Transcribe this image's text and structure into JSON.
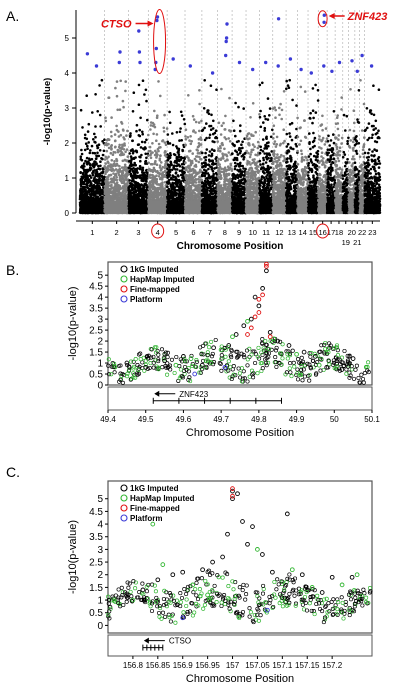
{
  "figure": {
    "panel_labels": [
      "A.",
      "B.",
      "C."
    ]
  },
  "colors": {
    "black": "#000000",
    "gray": "#7f7f7f",
    "blue": "#3b3bd6",
    "red": "#e01010",
    "green": "#2fb52f",
    "annotation": "#e01010",
    "vline": "#9a9a9a"
  },
  "chart_data": [
    {
      "type": "scatter",
      "title": "",
      "xlabel": "Chromosome Position",
      "ylabel": "-log10(p-value)",
      "ylim": [
        0,
        5.8
      ],
      "yticks": [
        "0",
        "1",
        "2",
        "3",
        "4",
        "5"
      ],
      "categories": [
        "1",
        "2",
        "3",
        "4",
        "5",
        "6",
        "7",
        "8",
        "9",
        "10",
        "11",
        "12",
        "13",
        "14",
        "15",
        "16",
        "17",
        "18",
        "19",
        "20",
        "21",
        "22",
        "23"
      ],
      "chromosome_lengths_mb": [
        249,
        243,
        198,
        191,
        181,
        171,
        159,
        146,
        141,
        136,
        135,
        134,
        115,
        107,
        103,
        90,
        81,
        78,
        59,
        63,
        48,
        51,
        155
      ],
      "highlighted_chromosomes": [
        "4",
        "16"
      ],
      "annotations": [
        {
          "label": "CTSO",
          "chromosome": "4",
          "y": 5.5
        },
        {
          "label": "ZNF423",
          "chromosome": "16",
          "y": 5.6
        }
      ],
      "top_hits": [
        {
          "chr": "1",
          "y": 4.55
        },
        {
          "chr": "1",
          "y": 4.2
        },
        {
          "chr": "2",
          "y": 4.6
        },
        {
          "chr": "2",
          "y": 4.3
        },
        {
          "chr": "3",
          "y": 4.3
        },
        {
          "chr": "3",
          "y": 4.6
        },
        {
          "chr": "3",
          "y": 5.2
        },
        {
          "chr": "4",
          "y": 5.6
        },
        {
          "chr": "4",
          "y": 5.5
        },
        {
          "chr": "4",
          "y": 4.7
        },
        {
          "chr": "4",
          "y": 4.3
        },
        {
          "chr": "4",
          "y": 4.1
        },
        {
          "chr": "5",
          "y": 4.4
        },
        {
          "chr": "6",
          "y": 4.2
        },
        {
          "chr": "7",
          "y": 4.0
        },
        {
          "chr": "8",
          "y": 5.4
        },
        {
          "chr": "8",
          "y": 5.0
        },
        {
          "chr": "8",
          "y": 4.9
        },
        {
          "chr": "8",
          "y": 4.5
        },
        {
          "chr": "9",
          "y": 4.3
        },
        {
          "chr": "10",
          "y": 4.1
        },
        {
          "chr": "11",
          "y": 4.3
        },
        {
          "chr": "12",
          "y": 5.55
        },
        {
          "chr": "12",
          "y": 4.2
        },
        {
          "chr": "13",
          "y": 4.4
        },
        {
          "chr": "14",
          "y": 4.1
        },
        {
          "chr": "15",
          "y": 4.0
        },
        {
          "chr": "16",
          "y": 5.65
        },
        {
          "chr": "16",
          "y": 5.45
        },
        {
          "chr": "16",
          "y": 4.2
        },
        {
          "chr": "17",
          "y": 4.05
        },
        {
          "chr": "18",
          "y": 4.3
        },
        {
          "chr": "20",
          "y": 4.35
        },
        {
          "chr": "21",
          "y": 4.05
        },
        {
          "chr": "22",
          "y": 4.5
        },
        {
          "chr": "23",
          "y": 4.2
        }
      ]
    },
    {
      "type": "scatter",
      "title": "",
      "xlabel": "Chromosome Position",
      "ylabel": "-log10(p-value)",
      "xlim": [
        49.4,
        50.1
      ],
      "ylim": [
        0,
        5.6
      ],
      "xticks": [
        "49.4",
        "49.5",
        "49.6",
        "49.7",
        "49.8",
        "49.9",
        "50",
        "50.1"
      ],
      "yticks": [
        "0",
        "0.5",
        "1",
        "1.5",
        "2",
        "2.5",
        "3",
        "3.5",
        "4",
        "4.5",
        "5"
      ],
      "legend": {
        "position": "top-left",
        "entries": [
          "1kG Imputed",
          "HapMap Imputed",
          "Fine-mapped",
          "Platform"
        ]
      },
      "gene": {
        "name": "ZNF423",
        "start": 49.52,
        "end": 49.86,
        "direction": "reverse"
      },
      "series": [
        {
          "name": "1kG Imputed",
          "points": [
            [
              49.82,
              5.2
            ],
            [
              49.81,
              4.4
            ],
            [
              49.79,
              4.0
            ],
            [
              49.8,
              3.6
            ],
            [
              49.78,
              3.0
            ],
            [
              49.76,
              2.7
            ],
            [
              49.83,
              2.4
            ],
            [
              49.74,
              2.3
            ],
            [
              49.85,
              2.0
            ],
            [
              49.72,
              1.8
            ],
            [
              49.88,
              1.8
            ],
            [
              49.68,
              1.7
            ],
            [
              49.92,
              1.5
            ],
            [
              49.95,
              1.3
            ],
            [
              50.05,
              1.2
            ],
            [
              49.6,
              1.3
            ],
            [
              49.55,
              1.1
            ],
            [
              49.45,
              1.0
            ],
            [
              49.5,
              0.8
            ],
            [
              49.65,
              0.9
            ],
            [
              49.98,
              0.8
            ],
            [
              50.02,
              0.7
            ]
          ]
        },
        {
          "name": "HapMap Imputed",
          "points": [
            [
              49.77,
              2.9
            ],
            [
              49.73,
              2.2
            ],
            [
              49.7,
              1.6
            ],
            [
              49.84,
              2.1
            ],
            [
              49.62,
              1.2
            ],
            [
              49.58,
              0.9
            ],
            [
              49.9,
              1.4
            ],
            [
              49.48,
              0.7
            ],
            [
              49.66,
              1.1
            ],
            [
              49.96,
              0.9
            ]
          ]
        },
        {
          "name": "Fine-mapped",
          "points": [
            [
              49.82,
              5.5
            ],
            [
              49.82,
              5.4
            ],
            [
              49.81,
              4.1
            ],
            [
              49.8,
              3.9
            ],
            [
              49.8,
              3.3
            ],
            [
              49.79,
              3.1
            ],
            [
              49.78,
              2.6
            ],
            [
              49.83,
              2.2
            ],
            [
              49.77,
              2.3
            ]
          ]
        },
        {
          "name": "Platform",
          "points": [
            [
              49.63,
              0.5
            ],
            [
              49.71,
              0.8
            ]
          ]
        }
      ]
    },
    {
      "type": "scatter",
      "title": "",
      "xlabel": "Chromosome Position",
      "ylabel": "-log10(p-value)",
      "xlim": [
        156.75,
        157.28
      ],
      "ylim": [
        -0.3,
        5.7
      ],
      "xticks": [
        "156.8",
        "156.85",
        "156.9",
        "156.95",
        "157",
        "157.05",
        "157.1",
        "157.15",
        "157.2"
      ],
      "yticks": [
        "0",
        "0.5",
        "1",
        "1.5",
        "2",
        "2.5",
        "3",
        "3.5",
        "4",
        "4.5",
        "5"
      ],
      "legend": {
        "position": "top-left",
        "entries": [
          "1kG Imputed",
          "HapMap Imputed",
          "Fine-mapped",
          "Platform"
        ]
      },
      "gene": {
        "name": "CTSO",
        "start": 156.82,
        "end": 156.86,
        "direction": "reverse"
      },
      "series": [
        {
          "name": "1kG Imputed",
          "points": [
            [
              157.0,
              5.3
            ],
            [
              157.01,
              5.2
            ],
            [
              157.0,
              5.0
            ],
            [
              157.02,
              4.1
            ],
            [
              157.04,
              3.9
            ],
            [
              157.11,
              4.4
            ],
            [
              156.99,
              3.6
            ],
            [
              157.03,
              3.2
            ],
            [
              156.98,
              2.7
            ],
            [
              157.06,
              2.8
            ],
            [
              156.96,
              2.5
            ],
            [
              156.94,
              2.2
            ],
            [
              156.9,
              2.1
            ],
            [
              156.88,
              2.0
            ],
            [
              157.08,
              2.1
            ],
            [
              157.14,
              2.0
            ],
            [
              157.2,
              1.9
            ],
            [
              157.24,
              1.9
            ],
            [
              156.85,
              1.8
            ],
            [
              156.82,
              1.4
            ],
            [
              156.79,
              1.1
            ],
            [
              157.18,
              1.3
            ]
          ]
        },
        {
          "name": "HapMap Imputed",
          "points": [
            [
              156.84,
              4.0
            ],
            [
              156.86,
              2.4
            ],
            [
              156.92,
              1.6
            ],
            [
              157.05,
              3.0
            ],
            [
              157.12,
              2.2
            ],
            [
              157.22,
              1.6
            ],
            [
              156.8,
              1.0
            ],
            [
              156.95,
              1.2
            ],
            [
              157.16,
              1.5
            ],
            [
              157.25,
              2.0
            ]
          ]
        },
        {
          "name": "Fine-mapped",
          "points": [
            [
              157.0,
              5.4
            ],
            [
              157.0,
              5.1
            ]
          ]
        },
        {
          "name": "Platform",
          "points": [
            [
              156.9,
              0.3
            ],
            [
              157.07,
              0.6
            ]
          ]
        }
      ]
    }
  ]
}
